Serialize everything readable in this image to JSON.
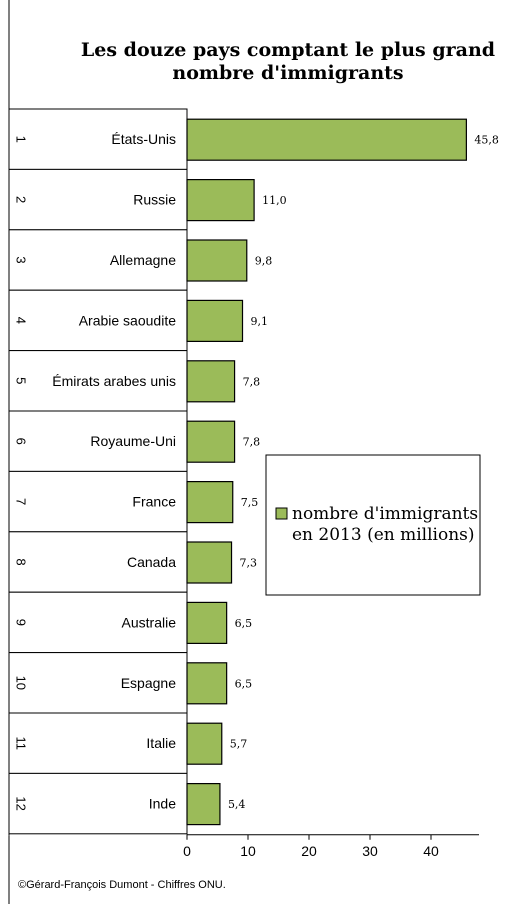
{
  "chart_data": {
    "type": "bar",
    "orientation": "horizontal",
    "title": "Les douze pays comptant le plus grand nombre d'immigrants",
    "title_lines": [
      "Les douze pays comptant le plus grand",
      "nombre d'immigrants"
    ],
    "ranks": [
      "1",
      "2",
      "3",
      "4",
      "5",
      "6",
      "7",
      "8",
      "9",
      "10",
      "11",
      "12"
    ],
    "categories": [
      "États-Unis",
      "Russie",
      "Allemagne",
      "Arabie saoudite",
      "Émirats arabes unis",
      "Royaume-Uni",
      "France",
      "Canada",
      "Australie",
      "Espagne",
      "Italie",
      "Inde"
    ],
    "series": [
      {
        "name": "nombre d'immigrants en 2013 (en millions)",
        "values": [
          45.8,
          11.0,
          9.8,
          9.1,
          7.8,
          7.8,
          7.5,
          7.3,
          6.5,
          6.5,
          5.7,
          5.4
        ],
        "value_labels": [
          "45,8",
          "11,0",
          "9,8",
          "9,1",
          "7,8",
          "7,8",
          "7,5",
          "7,3",
          "6,5",
          "6,5",
          "5,7",
          "5,4"
        ],
        "color": "#9bbb59"
      }
    ],
    "legend_lines": [
      "nombre d'immigrants",
      "en 2013 (en millions)"
    ],
    "xlim": [
      0,
      48
    ],
    "x_ticks": [
      0,
      10,
      20,
      30,
      40
    ],
    "x_tick_labels": [
      "0",
      "10",
      "20",
      "30",
      "40"
    ],
    "grid": false,
    "legend_position": "right"
  },
  "credit": "©Gérard-François Dumont - Chiffres ONU."
}
